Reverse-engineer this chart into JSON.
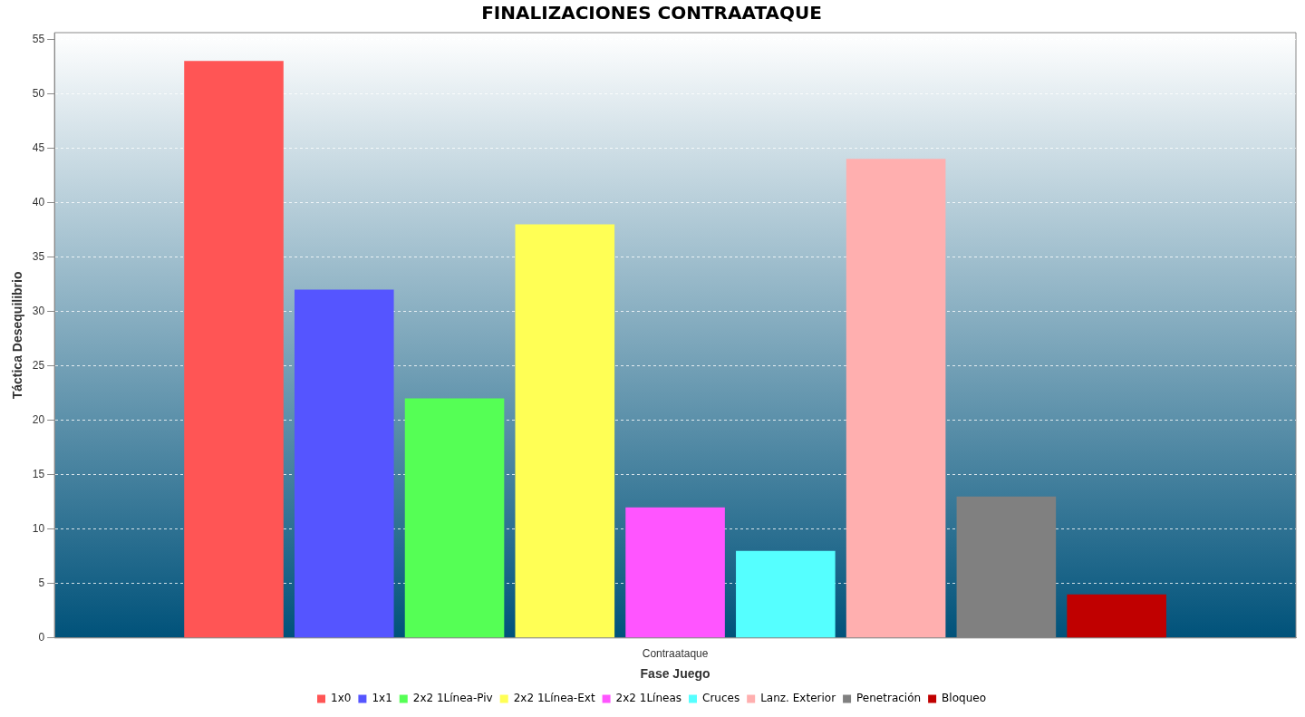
{
  "chart_data": {
    "type": "bar",
    "title": "FINALIZACIONES CONTRAATAQUE",
    "xlabel": "Fase Juego",
    "ylabel": "Táctica Desequilibrio",
    "categories": [
      "Contraataque"
    ],
    "series": [
      {
        "name": "1x0",
        "color": "#ff5555",
        "values": [
          53
        ]
      },
      {
        "name": "1x1",
        "color": "#5555ff",
        "values": [
          32
        ]
      },
      {
        "name": "2x2 1Línea-Piv",
        "color": "#55ff55",
        "values": [
          22
        ]
      },
      {
        "name": "2x2 1Línea-Ext",
        "color": "#ffff55",
        "values": [
          38
        ]
      },
      {
        "name": "2x2 1Líneas",
        "color": "#ff55ff",
        "values": [
          12
        ]
      },
      {
        "name": "Cruces",
        "color": "#55ffff",
        "values": [
          8
        ]
      },
      {
        "name": "Lanz. Exterior",
        "color": "#ffafaf",
        "values": [
          44
        ]
      },
      {
        "name": "Penetración",
        "color": "#808080",
        "values": [
          13
        ]
      },
      {
        "name": "Bloqueo",
        "color": "#c00000",
        "values": [
          4
        ]
      }
    ],
    "ylim": [
      0,
      55.6
    ],
    "yticks": [
      0,
      5,
      10,
      15,
      20,
      25,
      30,
      35,
      40,
      45,
      50,
      55
    ],
    "grid": "y",
    "legend": "bottom"
  }
}
